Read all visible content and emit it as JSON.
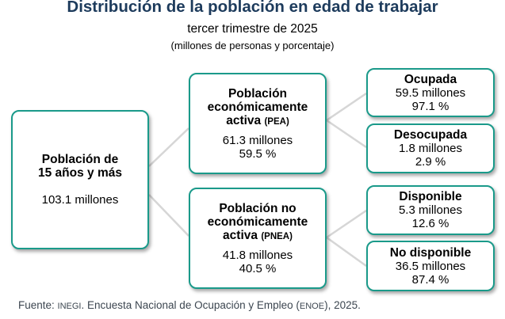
{
  "header": {
    "title": "Distribución de la población en edad de trabajar",
    "subtitle": "tercer trimestre de 2025",
    "units": "(millones de personas y porcentaje)"
  },
  "nodes": {
    "root": {
      "label_line1": "Población de",
      "label_line2": "15 años y más",
      "value": "103.1 millones"
    },
    "pea": {
      "label_line1": "Población",
      "label_line2": "económicamente",
      "label_line3": "activa",
      "abbr": "(PEA)",
      "value": "61.3 millones",
      "percent": "59.5 %"
    },
    "pnea": {
      "label_line1": "Población no",
      "label_line2": "económicamente",
      "label_line3": "activa",
      "abbr": "(PNEA)",
      "value": "41.8 millones",
      "percent": "40.5 %"
    },
    "ocupada": {
      "label": "Ocupada",
      "value": "59.5 millones",
      "percent": "97.1 %"
    },
    "desocupada": {
      "label": "Desocupada",
      "value": "1.8 millones",
      "percent": "2.9 %"
    },
    "disponible": {
      "label": "Disponible",
      "value": "5.3 millones",
      "percent": "12.6 %"
    },
    "no_disponible": {
      "label": "No disponible",
      "value": "36.5 millones",
      "percent": "87.4 %"
    }
  },
  "footer": {
    "prefix": "Fuente: ",
    "source_abbr": "INEGI",
    "middle": ". Encuesta Nacional de Ocupación y Empleo (",
    "survey_abbr": "ENOE",
    "suffix": "), 2025."
  },
  "colors": {
    "border": "#1a9a8a",
    "title": "#1d3b5c",
    "connector": "#d6d6d6"
  }
}
